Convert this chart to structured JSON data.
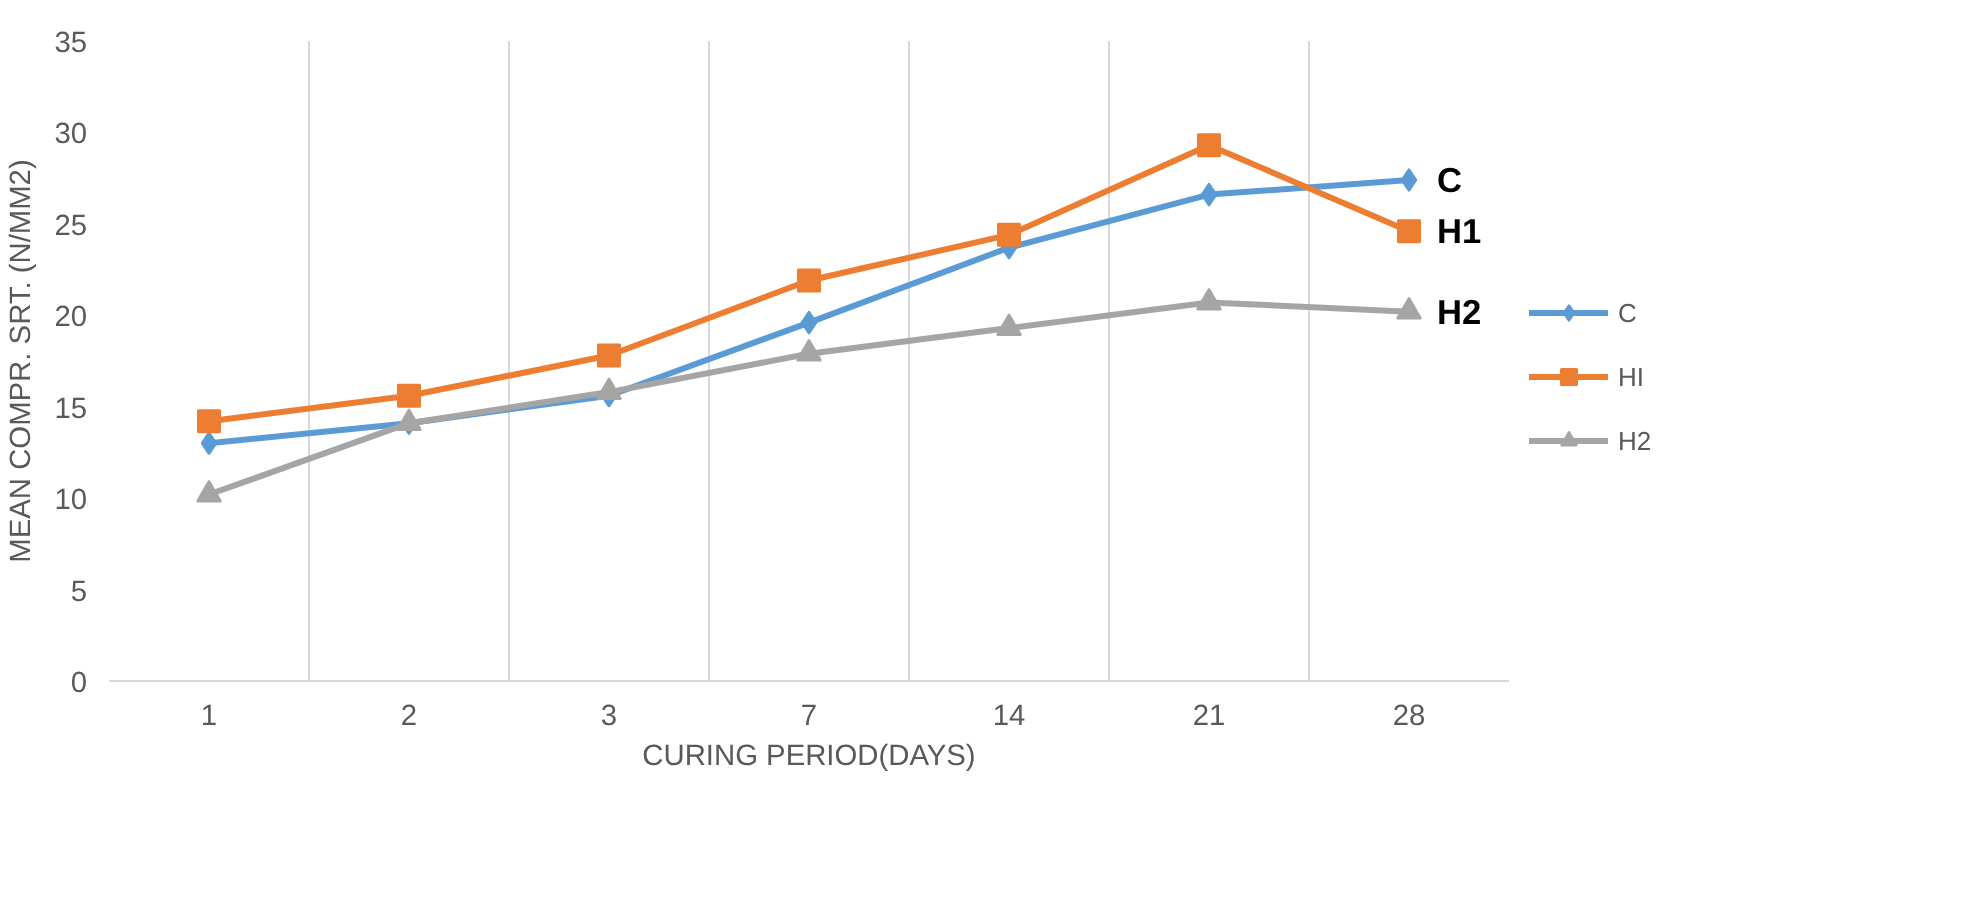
{
  "chart_data": {
    "type": "line",
    "xlabel": "CURING PERIOD(DAYS)",
    "ylabel": "MEAN COMPR. SRT. (N/MM2)",
    "categories": [
      "1",
      "2",
      "3",
      "7",
      "14",
      "21",
      "28"
    ],
    "series": [
      {
        "name": "C",
        "color": "#5b9bd5",
        "marker": "diamond",
        "values": [
          13.0,
          14.1,
          15.6,
          19.6,
          23.7,
          26.6,
          27.4
        ]
      },
      {
        "name": "HI",
        "color": "#ed7d31",
        "marker": "square",
        "values": [
          14.2,
          15.6,
          17.8,
          21.9,
          24.4,
          29.3,
          24.6
        ]
      },
      {
        "name": "H2",
        "color": "#a5a5a5",
        "marker": "triangle",
        "values": [
          10.2,
          14.1,
          15.8,
          17.9,
          19.3,
          20.7,
          20.2
        ]
      }
    ],
    "ylim": [
      0,
      35
    ],
    "yticks": [
      0,
      5,
      10,
      15,
      20,
      25,
      30,
      35
    ],
    "grid": "x",
    "legend": "right",
    "line_style": "solid",
    "annotations": [
      "C",
      "H1",
      "H2"
    ]
  }
}
